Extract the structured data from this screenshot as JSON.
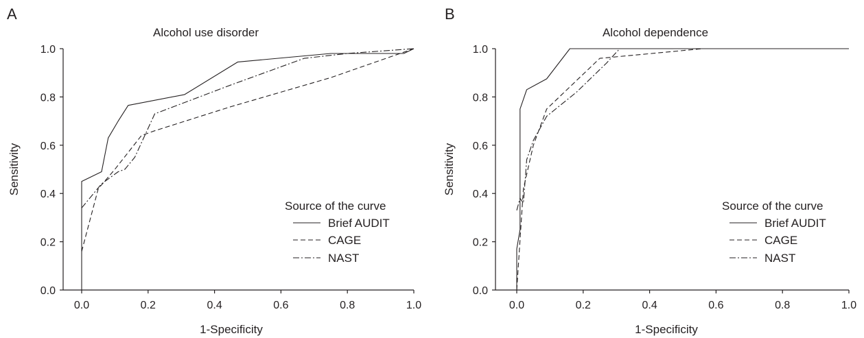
{
  "chart_data": [
    {
      "panel": "A",
      "type": "line",
      "title": "Alcohol use disorder",
      "xlabel": "1-Specificity",
      "ylabel": "Sensitivity",
      "xlim": [
        0,
        1
      ],
      "ylim": [
        0,
        1
      ],
      "xticks": [
        "0.0",
        "0.2",
        "0.4",
        "0.6",
        "0.8",
        "1.0"
      ],
      "yticks": [
        "0.0",
        "0.2",
        "0.4",
        "0.6",
        "0.8",
        "1.0"
      ],
      "legend": {
        "title": "Source of the curve",
        "placement": "bottom-right"
      },
      "series": [
        {
          "name": "Brief AUDIT",
          "style": "solid",
          "x": [
            0,
            0,
            0.06,
            0.08,
            0.11,
            0.14,
            0.31,
            0.47,
            0.75,
            0.97,
            1.0
          ],
          "y": [
            0,
            0.45,
            0.49,
            0.63,
            0.7,
            0.765,
            0.81,
            0.945,
            0.98,
            0.98,
            1.0
          ]
        },
        {
          "name": "CAGE",
          "style": "dashed",
          "x": [
            0,
            0.05,
            0.1,
            0.18,
            0.22,
            0.45,
            0.75,
            1.0
          ],
          "y": [
            0.16,
            0.42,
            0.5,
            0.64,
            0.66,
            0.76,
            0.88,
            1.0
          ]
        },
        {
          "name": "NAST",
          "style": "dashdot",
          "x": [
            0,
            0.06,
            0.11,
            0.13,
            0.16,
            0.22,
            0.45,
            0.67,
            0.8,
            1.0
          ],
          "y": [
            0.34,
            0.44,
            0.49,
            0.5,
            0.55,
            0.73,
            0.85,
            0.96,
            0.98,
            1.0
          ]
        }
      ]
    },
    {
      "panel": "B",
      "type": "line",
      "title": "Alcohol dependence",
      "xlabel": "1-Specificity",
      "ylabel": "Sensitivity",
      "xlim": [
        0,
        1
      ],
      "ylim": [
        0,
        1
      ],
      "xticks": [
        "0.0",
        "0.2",
        "0.4",
        "0.6",
        "0.8",
        "1.0"
      ],
      "yticks": [
        "0.0",
        "0.2",
        "0.4",
        "0.6",
        "0.8",
        "1.0"
      ],
      "legend": {
        "title": "Source of the curve",
        "placement": "bottom-right"
      },
      "series": [
        {
          "name": "Brief AUDIT",
          "style": "solid",
          "x": [
            0,
            0,
            0.01,
            0.01,
            0.03,
            0.09,
            0.16,
            1.0
          ],
          "y": [
            0,
            0.17,
            0.25,
            0.75,
            0.83,
            0.875,
            1.0,
            1.0
          ]
        },
        {
          "name": "CAGE",
          "style": "dashed",
          "x": [
            0,
            0.02,
            0.05,
            0.09,
            0.25,
            0.56,
            1.0
          ],
          "y": [
            0,
            0.42,
            0.6,
            0.75,
            0.96,
            1.0,
            1.0
          ]
        },
        {
          "name": "NAST",
          "style": "dashdot",
          "x": [
            0,
            0.01,
            0.02,
            0.03,
            0.05,
            0.09,
            0.18,
            0.27,
            0.31,
            1.0
          ],
          "y": [
            0.33,
            0.38,
            0.36,
            0.54,
            0.62,
            0.72,
            0.82,
            0.94,
            1.0,
            1.0
          ]
        }
      ]
    }
  ]
}
